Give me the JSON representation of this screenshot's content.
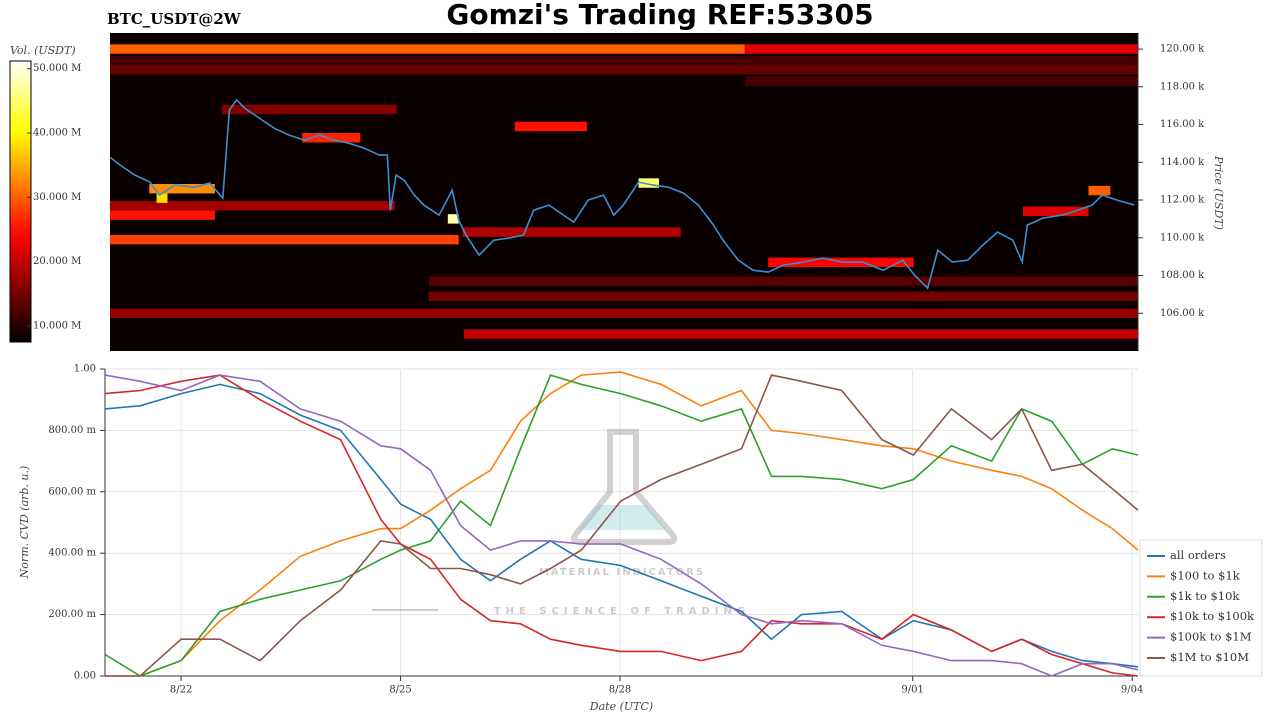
{
  "chart_data": [
    {
      "type": "heatmap",
      "title": "Gomzi's Trading REF:53305",
      "label": "BTC_USDT@2W",
      "colorbar_label": "Vol. (USDT)",
      "ylabel": "Price (USDT)",
      "colormap": "hot",
      "background": "#0a0000",
      "xlim": [
        20.96,
        35.08
      ],
      "ylim": [
        104000,
        120850
      ],
      "yticks": [
        {
          "value": 106000,
          "label": "106.00 k"
        },
        {
          "value": 108000,
          "label": "108.00 k"
        },
        {
          "value": 110000,
          "label": "110.00 k"
        },
        {
          "value": 112000,
          "label": "112.00 k"
        },
        {
          "value": 114000,
          "label": "114.00 k"
        },
        {
          "value": 116000,
          "label": "116.00 k"
        },
        {
          "value": 118000,
          "label": "118.00 k"
        },
        {
          "value": 120000,
          "label": "120.00 k"
        }
      ],
      "clim": [
        7500000,
        51200000
      ],
      "cticks": [
        {
          "value": 10000000,
          "label": "10.000 M"
        },
        {
          "value": 20000000,
          "label": "20.000 M"
        },
        {
          "value": 30000000,
          "label": "30.000 M"
        },
        {
          "value": 40000000,
          "label": "40.000 M"
        },
        {
          "value": 50000000,
          "label": "50.000 M"
        }
      ],
      "cells": [
        {
          "start": 20.96,
          "end": 29.68,
          "price": 120000,
          "volume": 30000000
        },
        {
          "start": 29.68,
          "end": 35.08,
          "price": 120000,
          "volume": 22000000
        },
        {
          "start": 20.96,
          "end": 35.08,
          "price": 119400,
          "volume": 12000000
        },
        {
          "start": 20.96,
          "end": 35.08,
          "price": 118900,
          "volume": 14000000
        },
        {
          "start": 29.68,
          "end": 35.08,
          "price": 118300,
          "volume": 12000000
        },
        {
          "start": 22.5,
          "end": 24.9,
          "price": 116800,
          "volume": 16000000
        },
        {
          "start": 26.52,
          "end": 27.51,
          "price": 115900,
          "volume": 25000000
        },
        {
          "start": 23.6,
          "end": 24.4,
          "price": 115300,
          "volume": 26000000
        },
        {
          "start": 20.96,
          "end": 24.87,
          "price": 111700,
          "volume": 18000000
        },
        {
          "start": 20.96,
          "end": 22.4,
          "price": 111200,
          "volume": 25000000
        },
        {
          "start": 21.5,
          "end": 22.4,
          "price": 112600,
          "volume": 33000000
        },
        {
          "start": 21.6,
          "end": 21.75,
          "price": 112100,
          "volume": 38000000
        },
        {
          "start": 20.96,
          "end": 25.75,
          "price": 109900,
          "volume": 28000000
        },
        {
          "start": 25.6,
          "end": 25.75,
          "price": 111000,
          "volume": 48000000
        },
        {
          "start": 25.8,
          "end": 28.8,
          "price": 110300,
          "volume": 19000000
        },
        {
          "start": 28.22,
          "end": 28.5,
          "price": 112900,
          "volume": 45000000
        },
        {
          "start": 30.0,
          "end": 32.0,
          "price": 108700,
          "volume": 24000000
        },
        {
          "start": 33.5,
          "end": 34.4,
          "price": 111400,
          "volume": 22000000
        },
        {
          "start": 34.4,
          "end": 34.7,
          "price": 112500,
          "volume": 30000000
        },
        {
          "start": 25.34,
          "end": 35.08,
          "price": 107700,
          "volume": 13000000
        },
        {
          "start": 25.34,
          "end": 35.08,
          "price": 106900,
          "volume": 15000000
        },
        {
          "start": 20.96,
          "end": 35.08,
          "price": 106000,
          "volume": 17000000
        },
        {
          "start": 25.82,
          "end": 35.08,
          "price": 104900,
          "volume": 20000000
        }
      ],
      "price": {
        "color": "#3a8fd3",
        "x": [
          20.96,
          21.1,
          21.3,
          21.51,
          21.64,
          21.85,
          22.12,
          22.33,
          22.51,
          22.6,
          22.7,
          22.81,
          23.01,
          23.22,
          23.42,
          23.63,
          23.84,
          24.04,
          24.25,
          24.45,
          24.66,
          24.77,
          24.81,
          24.89,
          25.0,
          25.14,
          25.27,
          25.48,
          25.66,
          25.75,
          25.85,
          26.03,
          26.23,
          26.44,
          26.64,
          26.78,
          26.99,
          27.19,
          27.33,
          27.53,
          27.74,
          27.88,
          28.01,
          28.22,
          28.42,
          28.63,
          28.84,
          29.04,
          29.25,
          29.38,
          29.59,
          29.79,
          30.0,
          30.21,
          30.48,
          30.75,
          31.03,
          31.3,
          31.58,
          31.85,
          32.01,
          32.19,
          32.33,
          32.53,
          32.74,
          32.95,
          33.15,
          33.36,
          33.49,
          33.56,
          33.77,
          34.04,
          34.25,
          34.45,
          34.59,
          34.79,
          35.03
        ],
        "y": [
          114270,
          113850,
          113320,
          112950,
          112260,
          112790,
          112680,
          112900,
          112100,
          116770,
          117300,
          116870,
          116340,
          115800,
          115440,
          115170,
          115440,
          115170,
          115000,
          114750,
          114380,
          114380,
          111460,
          113320,
          113050,
          112260,
          111730,
          111200,
          112520,
          110930,
          110140,
          109080,
          109870,
          109980,
          110140,
          111460,
          111730,
          111200,
          110830,
          112000,
          112260,
          111200,
          111730,
          112950,
          112790,
          112680,
          112360,
          111730,
          110670,
          109870,
          108810,
          108280,
          108180,
          108550,
          108710,
          108920,
          108710,
          108710,
          108280,
          108810,
          108020,
          107330,
          109340,
          108710,
          108810,
          109610,
          110300,
          109870,
          108710,
          110670,
          111040,
          111200,
          111460,
          111730,
          112260,
          112000,
          111730
        ]
      }
    },
    {
      "type": "line",
      "xlabel": "Date (UTC)",
      "ylabel": "Norm. CVD (arb. u.)",
      "grid": true,
      "legend": "right",
      "watermark": [
        "MATERIAL INDICATORS",
        "THE SCIENCE OF TRADING"
      ],
      "xlim": [
        20.96,
        35.08
      ],
      "xticks": [
        {
          "value": 22,
          "label": "8/22"
        },
        {
          "value": 25,
          "label": "8/25"
        },
        {
          "value": 28,
          "label": "8/28"
        },
        {
          "value": 32,
          "label": "9/01"
        },
        {
          "value": 35,
          "label": "9/04"
        }
      ],
      "ylim": [
        0,
        1
      ],
      "yticks": [
        {
          "value": 0,
          "label": "0.00"
        },
        {
          "value": 0.2,
          "label": "200.00 m"
        },
        {
          "value": 0.4,
          "label": "400.00 m"
        },
        {
          "value": 0.6,
          "label": "600.00 m"
        },
        {
          "value": 0.8,
          "label": "800.00 m"
        },
        {
          "value": 1,
          "label": "1.00"
        }
      ],
      "x": [
        20.96,
        21.44,
        22.0,
        22.53,
        23.08,
        23.63,
        24.18,
        24.73,
        25.0,
        25.41,
        25.82,
        26.23,
        26.64,
        27.05,
        27.47,
        28.01,
        28.56,
        29.11,
        29.66,
        30.07,
        30.48,
        31.03,
        31.58,
        32.01,
        32.53,
        33.08,
        33.49,
        33.9,
        34.32,
        34.73,
        35.08
      ],
      "series": [
        {
          "name": "all orders",
          "color": "#1f77b4",
          "values": [
            0.87,
            0.88,
            0.92,
            0.95,
            0.92,
            0.85,
            0.8,
            0.64,
            0.56,
            0.51,
            0.38,
            0.31,
            0.38,
            0.44,
            0.38,
            0.36,
            0.31,
            0.26,
            0.21,
            0.12,
            0.2,
            0.21,
            0.12,
            0.18,
            0.15,
            0.08,
            0.12,
            0.08,
            0.05,
            0.04,
            0.03
          ]
        },
        {
          "name": "$100 to $1k",
          "color": "#ff7f0e",
          "values": [
            0,
            0,
            0.05,
            0.18,
            0.28,
            0.39,
            0.44,
            0.48,
            0.48,
            0.54,
            0.61,
            0.67,
            0.83,
            0.92,
            0.98,
            0.99,
            0.95,
            0.88,
            0.93,
            0.8,
            0.79,
            0.77,
            0.75,
            0.74,
            0.7,
            0.67,
            0.65,
            0.61,
            0.54,
            0.48,
            0.41
          ]
        },
        {
          "name": "$1k to $10k",
          "color": "#2ca02c",
          "values": [
            0.07,
            0,
            0.05,
            0.21,
            0.25,
            0.28,
            0.31,
            0.38,
            0.41,
            0.44,
            0.57,
            0.49,
            0.74,
            0.98,
            0.95,
            0.92,
            0.88,
            0.83,
            0.87,
            0.65,
            0.65,
            0.64,
            0.61,
            0.64,
            0.75,
            0.7,
            0.87,
            0.83,
            0.69,
            0.74,
            0.72
          ]
        },
        {
          "name": "$10k to $100k",
          "color": "#d62728",
          "values": [
            0.92,
            0.93,
            0.96,
            0.98,
            0.9,
            0.83,
            0.77,
            0.51,
            0.43,
            0.38,
            0.25,
            0.18,
            0.17,
            0.12,
            0.1,
            0.08,
            0.08,
            0.05,
            0.08,
            0.18,
            0.17,
            0.17,
            0.12,
            0.2,
            0.15,
            0.08,
            0.12,
            0.07,
            0.04,
            0.01,
            0
          ]
        },
        {
          "name": "$100k to $1M",
          "color": "#9467bd",
          "values": [
            0.98,
            0.96,
            0.93,
            0.98,
            0.96,
            0.87,
            0.83,
            0.75,
            0.74,
            0.67,
            0.49,
            0.41,
            0.44,
            0.44,
            0.43,
            0.43,
            0.38,
            0.3,
            0.2,
            0.17,
            0.18,
            0.17,
            0.1,
            0.08,
            0.05,
            0.05,
            0.04,
            0,
            0.04,
            0.04,
            0.02
          ]
        },
        {
          "name": "$1M to $10M",
          "color": "#8c564b",
          "values": [
            0,
            0,
            0.12,
            0.12,
            0.05,
            0.18,
            0.28,
            0.44,
            0.43,
            0.35,
            0.35,
            0.33,
            0.3,
            0.35,
            0.41,
            0.57,
            0.64,
            0.69,
            0.74,
            0.98,
            0.96,
            0.93,
            0.77,
            0.72,
            0.87,
            0.77,
            0.87,
            0.67,
            0.69,
            0.61,
            0.54
          ]
        }
      ]
    }
  ]
}
